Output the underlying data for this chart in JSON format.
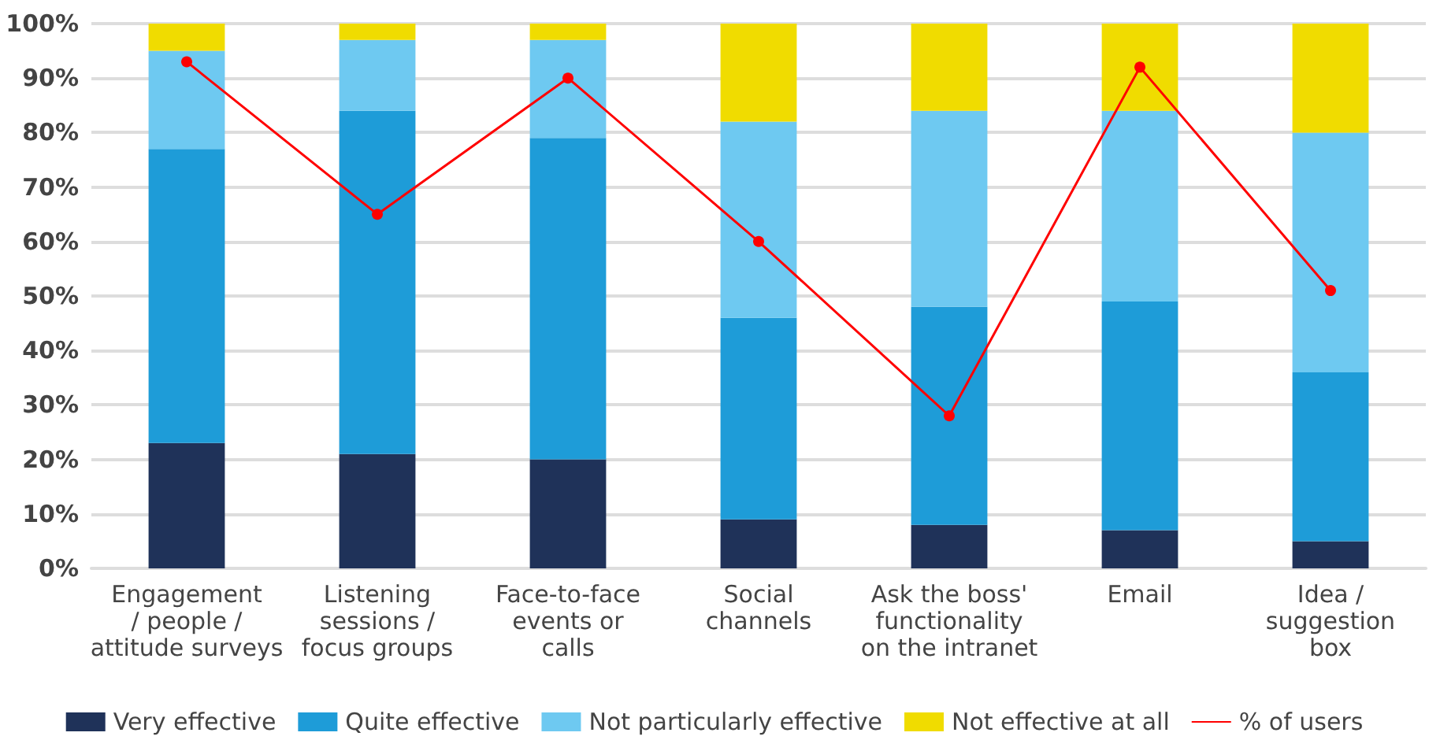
{
  "chart_data": {
    "type": "bar",
    "stacked": true,
    "categories": [
      "Engagement\n/ people /\nattitude surveys",
      "Listening\nsessions /\nfocus groups",
      "Face-to-face\nevents or\ncalls",
      "Social\nchannels",
      "Ask the boss'\nfunctionality\non the intranet",
      "Email",
      "Idea /\nsuggestion\nbox"
    ],
    "series": [
      {
        "name": "Very effective",
        "color": "#1f3259",
        "values": [
          23,
          21,
          20,
          9,
          8,
          7,
          5
        ]
      },
      {
        "name": "Quite effective",
        "color": "#1e9cd8",
        "values": [
          54,
          63,
          59,
          37,
          40,
          42,
          31
        ]
      },
      {
        "name": "Not particularly effective",
        "color": "#6ec9f1",
        "values": [
          18,
          13,
          18,
          36,
          36,
          35,
          44
        ]
      },
      {
        "name": "Not effective at all",
        "color": "#f0dc00",
        "values": [
          5,
          3,
          3,
          18,
          16,
          16,
          20
        ]
      },
      {
        "name": "% of users",
        "type": "line",
        "color": "#ff0000",
        "marker": "circle",
        "values": [
          93,
          65,
          90,
          60,
          28,
          92,
          51
        ]
      }
    ],
    "ylim": [
      0,
      100
    ],
    "yticks": [
      {
        "value": 0,
        "label": "0%"
      },
      {
        "value": 10,
        "label": "10%"
      },
      {
        "value": 20,
        "label": "20%"
      },
      {
        "value": 30,
        "label": "30%"
      },
      {
        "value": 40,
        "label": "40%"
      },
      {
        "value": 50,
        "label": "50%"
      },
      {
        "value": 60,
        "label": "60%"
      },
      {
        "value": 70,
        "label": "70%"
      },
      {
        "value": 80,
        "label": "80%"
      },
      {
        "value": 90,
        "label": "90%"
      },
      {
        "value": 100,
        "label": "100%"
      }
    ],
    "grid": "y",
    "legend": "bottom"
  }
}
